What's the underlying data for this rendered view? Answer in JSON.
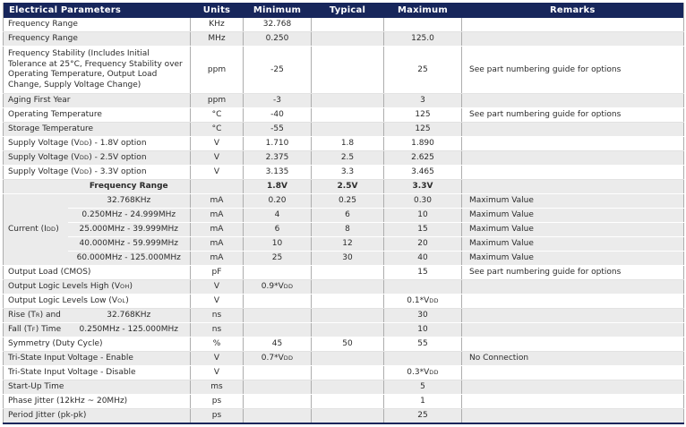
{
  "colors": {
    "header-bg": "#17265B",
    "header-text": "#FFFFFF",
    "row-shade": "#EBEBEB",
    "row-white": "#FFFFFF",
    "grid-line": "#ADADAD",
    "text": "#2B2B2B"
  },
  "table": {
    "columns": [
      "Electrical Parameters",
      "Units",
      "Minimum",
      "Typical",
      "Maximum",
      "Remarks"
    ],
    "rows": [
      {
        "shade": false,
        "param": "Frequency Range",
        "units": "KHz",
        "min": "32.768",
        "typ": "",
        "max": "",
        "remarks": ""
      },
      {
        "shade": true,
        "param": "Frequency Range",
        "units": "MHz",
        "min": "0.250",
        "typ": "",
        "max": "125.0",
        "remarks": ""
      },
      {
        "shade": false,
        "tall": true,
        "param": "Frequency Stability (Includes Initial Tolerance at 25°C, Frequency Stability over Operating Temperature, Output Load Change, Supply Voltage Change)",
        "units": "ppm",
        "min": "-25",
        "typ": "",
        "max": "25",
        "remarks": "See part numbering guide for options"
      },
      {
        "shade": true,
        "param": "Aging First Year",
        "units": "ppm",
        "min": "-3",
        "typ": "",
        "max": "3",
        "remarks": ""
      },
      {
        "shade": false,
        "param": "Operating Temperature",
        "units": "°C",
        "min": "-40",
        "typ": "",
        "max": "125",
        "remarks": "See part numbering guide for options"
      },
      {
        "shade": true,
        "param": "Storage Temperature",
        "units": "°C",
        "min": "-55",
        "typ": "",
        "max": "125",
        "remarks": ""
      },
      {
        "shade": false,
        "param": "Supply Voltage (V|DD|) - 1.8V option",
        "units": "V",
        "min": "1.710",
        "typ": "1.8",
        "max": "1.890",
        "remarks": ""
      },
      {
        "shade": true,
        "param": "Supply Voltage (V|DD|) - 2.5V option",
        "units": "V",
        "min": "2.375",
        "typ": "2.5",
        "max": "2.625",
        "remarks": ""
      },
      {
        "shade": false,
        "param": "Supply Voltage (V|DD|) - 3.3V option",
        "units": "V",
        "min": "3.135",
        "typ": "3.3",
        "max": "3.465",
        "remarks": ""
      },
      {
        "shade": true,
        "bold": true,
        "param_left": "",
        "param_sub": "Frequency Range",
        "units": "",
        "min": "1.8V",
        "typ": "2.5V",
        "max": "3.3V",
        "remarks": ""
      },
      {
        "shade": true,
        "group_label": "Current (I|DD|)",
        "group_span": 5,
        "param_sub": "32.768KHz",
        "units": "mA",
        "min": "0.20",
        "typ": "0.25",
        "max": "0.30",
        "remarks": "Maximum Value"
      },
      {
        "shade": true,
        "in_group": true,
        "param_sub": "0.250MHz - 24.999MHz",
        "units": "mA",
        "min": "4",
        "typ": "6",
        "max": "10",
        "remarks": "Maximum Value"
      },
      {
        "shade": true,
        "in_group": true,
        "param_sub": "25.000MHz - 39.999MHz",
        "units": "mA",
        "min": "6",
        "typ": "8",
        "max": "15",
        "remarks": "Maximum Value"
      },
      {
        "shade": true,
        "in_group": true,
        "param_sub": "40.000MHz - 59.999MHz",
        "units": "mA",
        "min": "10",
        "typ": "12",
        "max": "20",
        "remarks": "Maximum Value"
      },
      {
        "shade": true,
        "in_group": true,
        "param_sub": "60.000MHz - 125.000MHz",
        "units": "mA",
        "min": "25",
        "typ": "30",
        "max": "40",
        "remarks": "Maximum Value"
      },
      {
        "shade": false,
        "param": "Output Load (CMOS)",
        "units": "pF",
        "min": "",
        "typ": "",
        "max": "15",
        "remarks": "See part numbering guide for options"
      },
      {
        "shade": true,
        "param": "Output Logic Levels High (V|OH|)",
        "units": "V",
        "min": "0.9*V|DD|",
        "typ": "",
        "max": "",
        "remarks": ""
      },
      {
        "shade": false,
        "param": "Output Logic Levels Low (V|OL|)",
        "units": "V",
        "min": "",
        "typ": "",
        "max": "0.1*V|DD|",
        "remarks": ""
      },
      {
        "shade": true,
        "param_left": "Rise (T|R|) and",
        "param_sub": "32.768KHz",
        "units": "ns",
        "min": "",
        "typ": "",
        "max": "30",
        "remarks": ""
      },
      {
        "shade": true,
        "param_left": "Fall (T|F|) Time",
        "param_sub": "0.250MHz - 125.000MHz",
        "units": "ns",
        "min": "",
        "typ": "",
        "max": "10",
        "remarks": ""
      },
      {
        "shade": false,
        "param": "Symmetry (Duty Cycle)",
        "units": "%",
        "min": "45",
        "typ": "50",
        "max": "55",
        "remarks": ""
      },
      {
        "shade": true,
        "param": "Tri-State Input Voltage - Enable",
        "units": "V",
        "min": "0.7*V|DD|",
        "typ": "",
        "max": "",
        "remarks": "No Connection"
      },
      {
        "shade": false,
        "param": "Tri-State Input Voltage - Disable",
        "units": "V",
        "min": "",
        "typ": "",
        "max": "0.3*V|DD|",
        "remarks": ""
      },
      {
        "shade": true,
        "param": "Start-Up Time",
        "units": "ms",
        "min": "",
        "typ": "",
        "max": "5",
        "remarks": ""
      },
      {
        "shade": false,
        "param": "Phase Jitter (12kHz ~ 20MHz)",
        "units": "ps",
        "min": "",
        "typ": "",
        "max": "1",
        "remarks": ""
      },
      {
        "shade": true,
        "param": "Period Jitter (pk-pk)",
        "units": "ps",
        "min": "",
        "typ": "",
        "max": "25",
        "remarks": ""
      }
    ]
  }
}
